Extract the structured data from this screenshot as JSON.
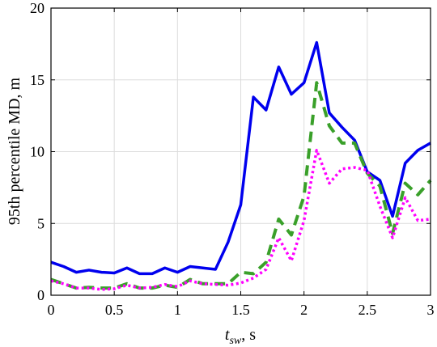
{
  "chart_data": {
    "type": "line",
    "xlabel": "t_sw, s",
    "xlabel_main": "t",
    "xlabel_sub": "sw",
    "xlabel_unit": ", s",
    "ylabel": "95th percentile MD, m",
    "xlim": [
      0,
      3
    ],
    "ylim": [
      0,
      20
    ],
    "xticks": [
      0,
      0.5,
      1,
      1.5,
      2,
      2.5,
      3
    ],
    "yticks": [
      0,
      5,
      10,
      15,
      20
    ],
    "xtick_labels": [
      "0",
      "0.5",
      "1",
      "1.5",
      "2",
      "2.5",
      "3"
    ],
    "ytick_labels": [
      "0",
      "5",
      "10",
      "15",
      "20"
    ],
    "grid": true,
    "x": [
      0,
      0.1,
      0.2,
      0.3,
      0.4,
      0.5,
      0.6,
      0.7,
      0.8,
      0.9,
      1.0,
      1.1,
      1.2,
      1.3,
      1.4,
      1.5,
      1.6,
      1.7,
      1.8,
      1.9,
      2.0,
      2.1,
      2.2,
      2.3,
      2.4,
      2.5,
      2.6,
      2.7,
      2.8,
      2.9,
      3.0
    ],
    "series": [
      {
        "color": "#0000ee",
        "dash": "solid",
        "values": [
          2.3,
          2.0,
          1.6,
          1.75,
          1.6,
          1.55,
          1.9,
          1.5,
          1.5,
          1.9,
          1.6,
          2.0,
          1.9,
          1.8,
          3.7,
          6.3,
          13.8,
          12.9,
          15.9,
          14.0,
          14.8,
          17.6,
          12.7,
          11.7,
          10.8,
          8.6,
          8.0,
          5.5,
          9.2,
          10.1,
          10.6
        ]
      },
      {
        "color": "#3aa02a",
        "dash": "dashed",
        "values": [
          1.1,
          0.8,
          0.5,
          0.55,
          0.5,
          0.5,
          0.8,
          0.5,
          0.5,
          0.7,
          0.55,
          1.1,
          0.8,
          0.8,
          0.8,
          1.6,
          1.5,
          2.3,
          5.3,
          4.2,
          6.9,
          14.8,
          11.8,
          10.6,
          10.6,
          8.5,
          7.6,
          4.3,
          7.8,
          7.0,
          8.0
        ]
      },
      {
        "color": "#ff00ff",
        "dash": "dotted",
        "values": [
          1.0,
          0.8,
          0.5,
          0.5,
          0.4,
          0.45,
          0.7,
          0.5,
          0.55,
          0.75,
          0.6,
          1.0,
          0.8,
          0.75,
          0.7,
          0.85,
          1.2,
          1.8,
          4.0,
          2.4,
          5.2,
          10.1,
          7.8,
          8.8,
          8.9,
          8.7,
          6.2,
          4.0,
          6.8,
          5.2,
          5.3
        ]
      }
    ]
  }
}
